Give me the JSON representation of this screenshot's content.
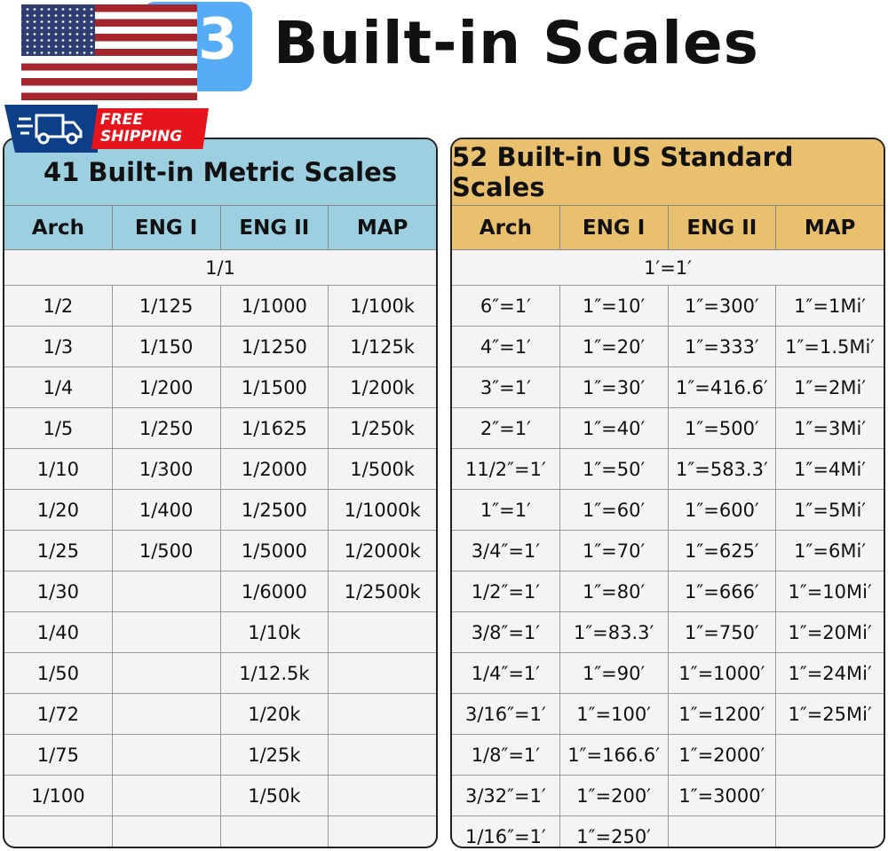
{
  "header": {
    "badge_number": "3",
    "title": "Built-in Scales",
    "shipping": [
      "FREE",
      "SHIPPING"
    ]
  },
  "colors": {
    "metric_header": "#9ccfe0",
    "us_header": "#e9c16e",
    "badge": "#57adf5",
    "shipping_red": "#e8141b",
    "shipping_blue": "#0c3f88"
  },
  "metric": {
    "title": "41 Built-in Metric Scales",
    "columns": [
      "Arch",
      "ENG I",
      "ENG II",
      "MAP"
    ],
    "full_row": "1/1",
    "rows": [
      [
        "1/2",
        "1/125",
        "1/1000",
        "1/100k"
      ],
      [
        "1/3",
        "1/150",
        "1/1250",
        "1/125k"
      ],
      [
        "1/4",
        "1/200",
        "1/1500",
        "1/200k"
      ],
      [
        "1/5",
        "1/250",
        "1/1625",
        "1/250k"
      ],
      [
        "1/10",
        "1/300",
        "1/2000",
        "1/500k"
      ],
      [
        "1/20",
        "1/400",
        "1/2500",
        "1/1000k"
      ],
      [
        "1/25",
        "1/500",
        "1/5000",
        "1/2000k"
      ],
      [
        "1/30",
        "",
        "1/6000",
        "1/2500k"
      ],
      [
        "1/40",
        "",
        "1/10k",
        ""
      ],
      [
        "1/50",
        "",
        "1/12.5k",
        ""
      ],
      [
        "1/72",
        "",
        "1/20k",
        ""
      ],
      [
        "1/75",
        "",
        "1/25k",
        ""
      ],
      [
        "1/100",
        "",
        "1/50k",
        ""
      ],
      [
        "",
        "",
        "",
        ""
      ]
    ]
  },
  "us": {
    "title": "52 Built-in US Standard Scales",
    "columns": [
      "Arch",
      "ENG I",
      "ENG II",
      "MAP"
    ],
    "full_row": "1′=1′",
    "rows": [
      [
        "6″=1′",
        "1″=10′",
        "1″=300′",
        "1″=1Mi′"
      ],
      [
        "4″=1′",
        "1″=20′",
        "1″=333′",
        "1″=1.5Mi′"
      ],
      [
        "3″=1′",
        "1″=30′",
        "1″=416.6′",
        "1″=2Mi′"
      ],
      [
        "2″=1′",
        "1″=40′",
        "1″=500′",
        "1″=3Mi′"
      ],
      [
        "11/2″=1′",
        "1″=50′",
        "1″=583.3′",
        "1″=4Mi′"
      ],
      [
        "1″=1′",
        "1″=60′",
        "1″=600′",
        "1″=5Mi′"
      ],
      [
        "3/4″=1′",
        "1″=70′",
        "1″=625′",
        "1″=6Mi′"
      ],
      [
        "1/2″=1′",
        "1″=80′",
        "1″=666′",
        "1″=10Mi′"
      ],
      [
        "3/8″=1′",
        "1″=83.3′",
        "1″=750′",
        "1″=20Mi′"
      ],
      [
        "1/4″=1′",
        "1″=90′",
        "1″=1000′",
        "1″=24Mi′"
      ],
      [
        "3/16″=1′",
        "1″=100′",
        "1″=1200′",
        "1″=25Mi′"
      ],
      [
        "1/8″=1′",
        "1″=166.6′",
        "1″=2000′",
        ""
      ],
      [
        "3/32″=1′",
        "1″=200′",
        "1″=3000′",
        ""
      ],
      [
        "1/16″=1′",
        "1″=250′",
        "",
        ""
      ]
    ]
  }
}
